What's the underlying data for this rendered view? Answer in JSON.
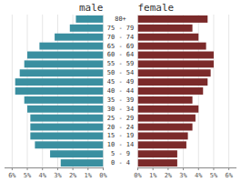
{
  "chart_data": {
    "type": "bar",
    "orientation": "horizontal",
    "categories": [
      "0 - 4",
      "5 - 9",
      "10 - 14",
      "15 - 19",
      "20 - 24",
      "25 - 29",
      "30 - 34",
      "35 - 39",
      "40 - 44",
      "45 - 49",
      "50 - 54",
      "55 - 59",
      "60 - 64",
      "65 - 69",
      "70 - 74",
      "75 - 79",
      "80+"
    ],
    "series": [
      {
        "name": "male",
        "color": "#3a8fa0",
        "values": [
          2.8,
          3.5,
          4.5,
          4.8,
          4.8,
          4.8,
          5.0,
          5.2,
          5.8,
          5.8,
          5.5,
          5.2,
          5.0,
          4.2,
          3.2,
          2.2,
          1.8
        ]
      },
      {
        "name": "female",
        "color": "#7b2a2a",
        "values": [
          2.6,
          2.6,
          3.2,
          3.3,
          3.6,
          3.8,
          4.0,
          3.6,
          4.3,
          4.6,
          4.8,
          5.0,
          5.0,
          4.5,
          4.0,
          3.6,
          4.6
        ]
      }
    ],
    "xlim": [
      0,
      6.5
    ],
    "xticks": [
      {
        "value": 0,
        "label": "0%"
      },
      {
        "value": 1,
        "label": "1%"
      },
      {
        "value": 2,
        "label": "2%"
      },
      {
        "value": 3,
        "label": "3%"
      },
      {
        "value": 4,
        "label": "4%"
      },
      {
        "value": 5,
        "label": "5%"
      },
      {
        "value": 6,
        "label": "6%"
      }
    ]
  }
}
